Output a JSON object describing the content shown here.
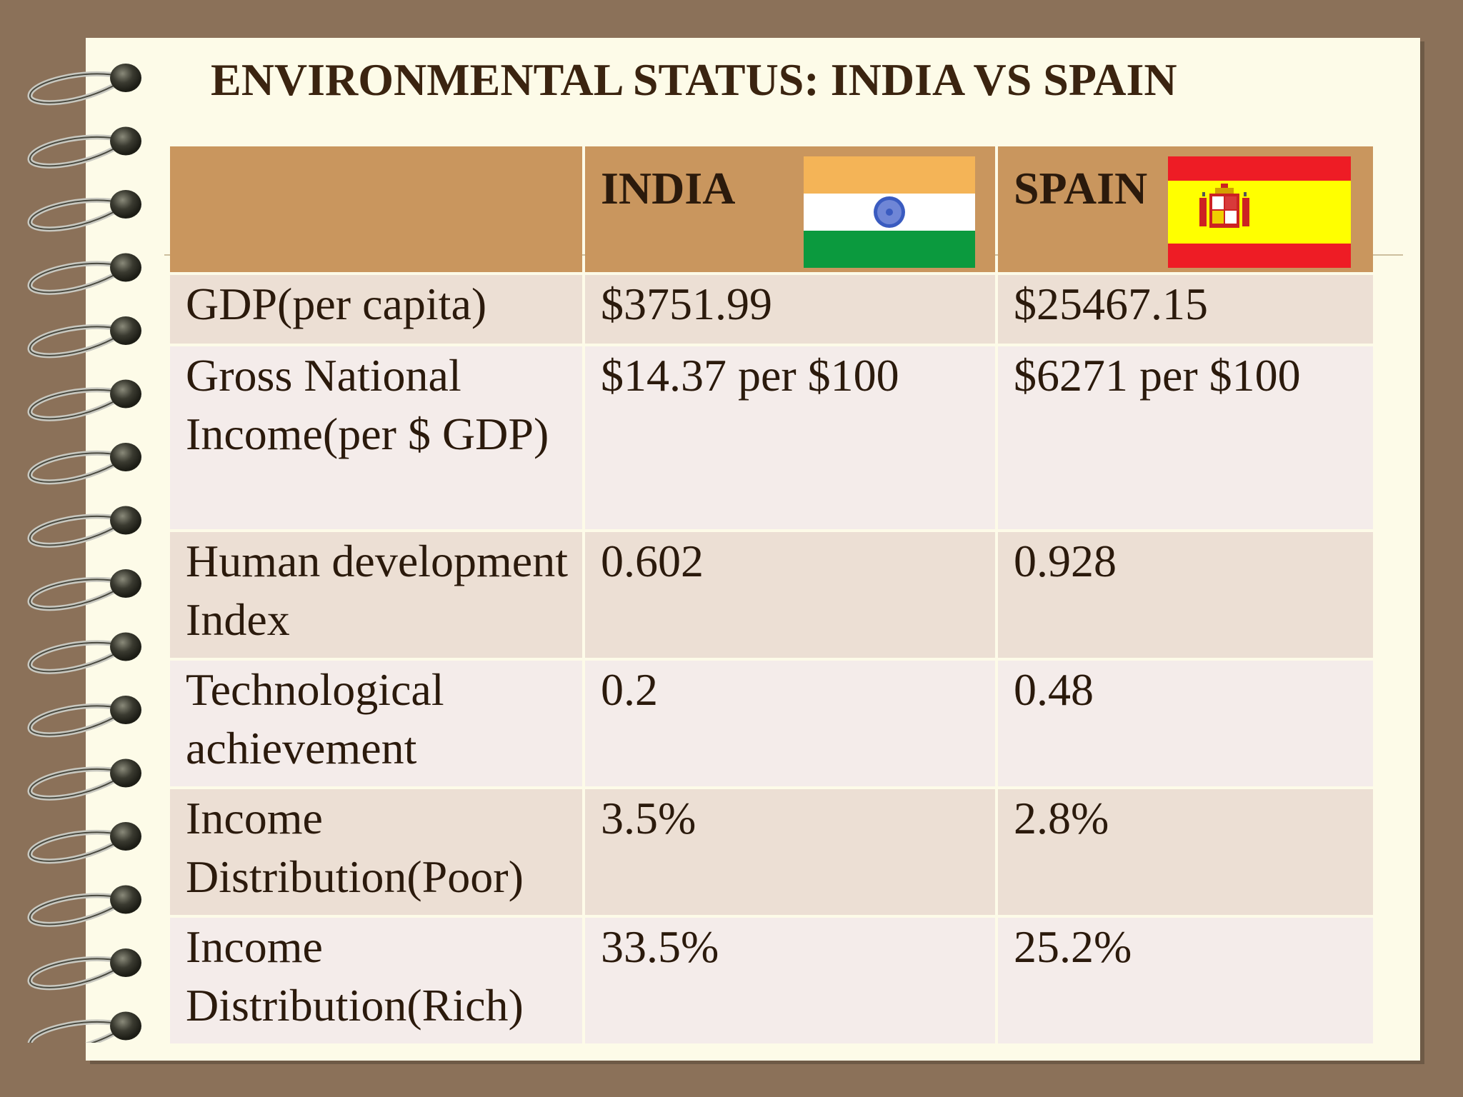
{
  "slide": {
    "title": "ENVIRONMENTAL STATUS: INDIA VS SPAIN"
  },
  "table": {
    "headers": [
      "",
      "INDIA",
      "SPAIN"
    ],
    "rows": [
      {
        "label": "GDP(per capita)",
        "india": "$3751.99",
        "spain": "$25467.15"
      },
      {
        "label": "Gross National Income(per $ GDP)",
        "india": "$14.37 per $100",
        "spain": "$6271 per $100"
      },
      {
        "label": "Human development Index",
        "india": "0.602",
        "spain": "0.928"
      },
      {
        "label": "Technological achievement",
        "india": "0.2",
        "spain": "0.48"
      },
      {
        "label": "Income Distribution(Poor)",
        "india": "3.5%",
        "spain": "2.8%"
      },
      {
        "label": "Income Distribution(Rich)",
        "india": "33.5%",
        "spain": "25.2%"
      }
    ]
  },
  "flags": {
    "india": {
      "icon": "india-flag-icon",
      "colors": [
        "#f4b457",
        "#ffffff",
        "#0b9a3e",
        "#3a5bc0"
      ]
    },
    "spain": {
      "icon": "spain-flag-icon",
      "colors": [
        "#ee1c25",
        "#ffff00"
      ]
    }
  },
  "colors": {
    "background": "#8b7159",
    "paper": "#fdfbe8",
    "header_row": "#c9965e",
    "row_odd": "#ecdfd4",
    "row_even": "#f4ecea",
    "text": "#2b1a0c"
  }
}
